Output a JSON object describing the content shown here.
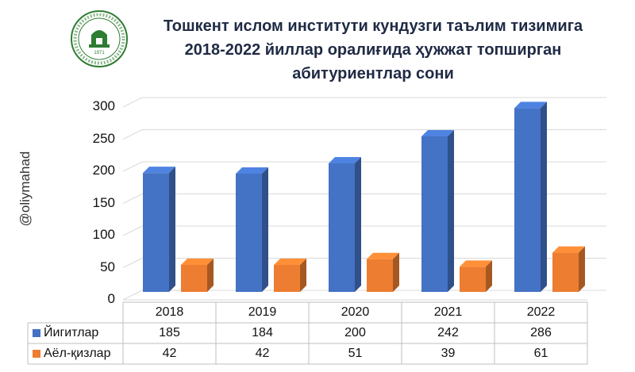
{
  "header": {
    "title_lines": [
      "Тошкент ислом институти кундузги таълим тизимига",
      "2018-2022 йиллар оралиғида ҳужжат топширган",
      "абитуриентлар сони"
    ],
    "watermark": "@oliymahad",
    "logo_icon": "institute-seal-icon",
    "logo_text": "Тошкент ислом институти 1971"
  },
  "chart_data": {
    "type": "bar",
    "categories": [
      "2018",
      "2019",
      "2020",
      "2021",
      "2022"
    ],
    "series": [
      {
        "name": "Йигитлар",
        "values": [
          185,
          184,
          200,
          242,
          286
        ],
        "color": "#4472C4"
      },
      {
        "name": "Аёл-қизлар",
        "values": [
          42,
          42,
          51,
          39,
          61
        ],
        "color": "#ED7D31"
      }
    ],
    "ylim": [
      0,
      300
    ],
    "yticks": [
      "300",
      "250",
      "200",
      "150",
      "100",
      "50",
      "0"
    ],
    "grid": true,
    "legend": "data-table",
    "data_table": true
  }
}
